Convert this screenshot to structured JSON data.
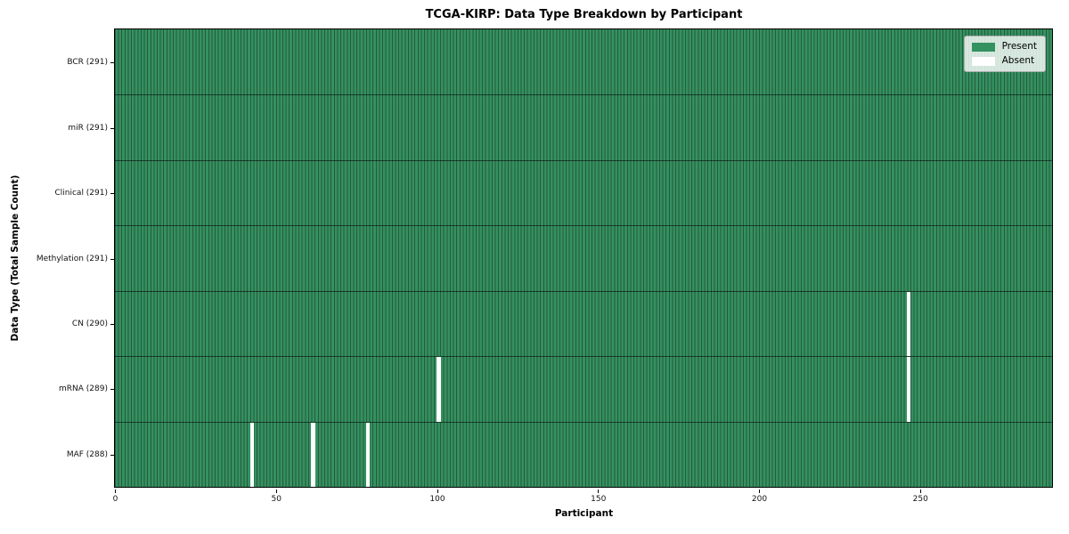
{
  "chart_data": {
    "type": "heatmap",
    "title": "TCGA-KIRP: Data Type Breakdown by Participant",
    "xlabel": "Participant",
    "ylabel": "Data Type (Total Sample Count)",
    "x_ticks": [
      0,
      50,
      100,
      150,
      200,
      250
    ],
    "xlim": [
      0,
      291
    ],
    "n_participants": 291,
    "grid": false,
    "legend_position": "upper right",
    "legend": [
      {
        "label": "Present",
        "color": "#349160"
      },
      {
        "label": "Absent",
        "color": "#ffffff"
      }
    ],
    "rows": [
      {
        "label": "BCR (291)",
        "data_type": "BCR",
        "present_count": 291,
        "absent_participants": []
      },
      {
        "label": "miR (291)",
        "data_type": "miR",
        "present_count": 291,
        "absent_participants": []
      },
      {
        "label": "Clinical (291)",
        "data_type": "Clinical",
        "present_count": 291,
        "absent_participants": []
      },
      {
        "label": "Methylation (291)",
        "data_type": "Methylation",
        "present_count": 291,
        "absent_participants": []
      },
      {
        "label": "CN (290)",
        "data_type": "CN",
        "present_count": 290,
        "absent_participants": [
          246
        ]
      },
      {
        "label": "mRNA (289)",
        "data_type": "mRNA",
        "present_count": 289,
        "absent_participants": [
          100,
          246
        ]
      },
      {
        "label": "MAF (288)",
        "data_type": "MAF",
        "present_count": 288,
        "absent_participants": [
          42,
          61,
          78
        ]
      }
    ],
    "colors": {
      "present_fill": "#349160",
      "cell_edge": "#26593d",
      "absent_fill": "#ffffff",
      "row_divider": "rgba(0,0,0,0.55)",
      "frame": "#000000",
      "background": "#ffffff"
    }
  }
}
